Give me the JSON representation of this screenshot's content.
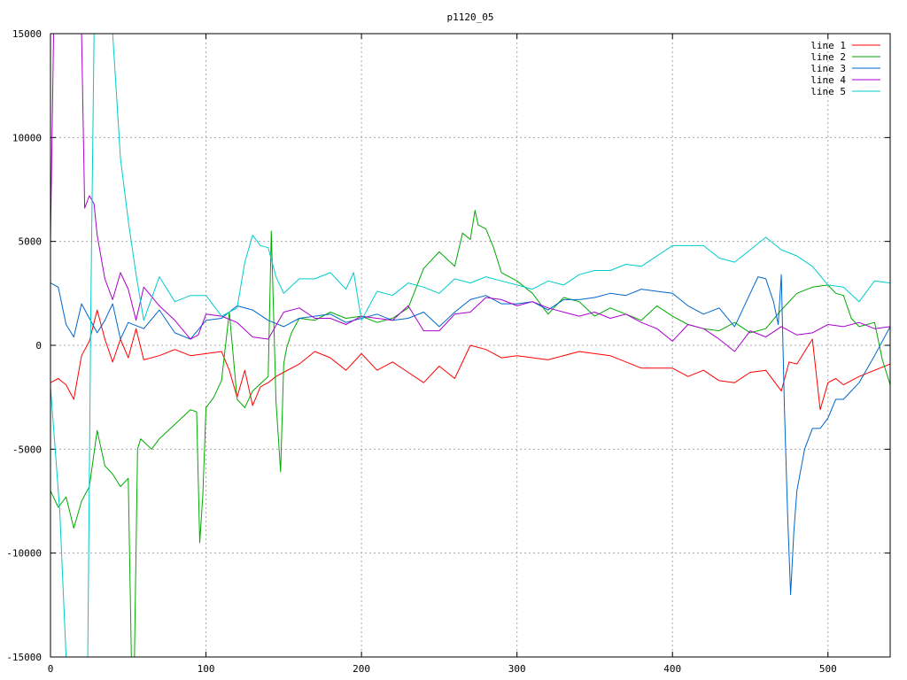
{
  "chart_data": {
    "type": "line",
    "title": "p1120_05",
    "xlabel": "",
    "ylabel": "",
    "xlim": [
      0,
      540
    ],
    "ylim": [
      -15000,
      15000
    ],
    "x_ticks": [
      "0",
      "100",
      "200",
      "300",
      "400",
      "500"
    ],
    "y_ticks": [
      "-15000",
      "-10000",
      "-5000",
      "0",
      "5000",
      "10000",
      "15000"
    ],
    "grid": true,
    "legend_position": "top-right",
    "series": [
      {
        "name": "line 1",
        "color": "#ff0000",
        "x": [
          0,
          5,
          10,
          15,
          20,
          25,
          30,
          35,
          40,
          45,
          50,
          55,
          60,
          70,
          80,
          90,
          100,
          110,
          115,
          120,
          125,
          130,
          135,
          140,
          145,
          150,
          160,
          170,
          180,
          190,
          200,
          210,
          220,
          230,
          240,
          250,
          260,
          270,
          280,
          290,
          300,
          320,
          340,
          360,
          380,
          400,
          410,
          420,
          430,
          440,
          450,
          460,
          470,
          475,
          480,
          490,
          495,
          500,
          505,
          510,
          520,
          530,
          540
        ],
        "y": [
          -1800,
          -1600,
          -1900,
          -2600,
          -500,
          200,
          1700,
          300,
          -800,
          300,
          -600,
          800,
          -700,
          -500,
          -200,
          -500,
          -400,
          -300,
          -1200,
          -2500,
          -1200,
          -2900,
          -2000,
          -1800,
          -1500,
          -1300,
          -900,
          -300,
          -600,
          -1200,
          -400,
          -1200,
          -800,
          -1300,
          -1800,
          -1000,
          -1600,
          0,
          -200,
          -600,
          -500,
          -700,
          -300,
          -500,
          -1100,
          -1100,
          -1500,
          -1200,
          -1700,
          -1800,
          -1300,
          -1200,
          -2200,
          -800,
          -900,
          300,
          -3100,
          -1800,
          -1600,
          -1900,
          -1500,
          -1200,
          -900
        ]
      },
      {
        "name": "line 2",
        "color": "#00aa00",
        "x": [
          0,
          5,
          10,
          15,
          20,
          25,
          30,
          35,
          40,
          45,
          50,
          52,
          54,
          56,
          58,
          65,
          70,
          80,
          90,
          94,
          96,
          98,
          100,
          105,
          110,
          115,
          120,
          125,
          130,
          140,
          142,
          145,
          148,
          150,
          152,
          155,
          160,
          170,
          180,
          190,
          200,
          210,
          220,
          230,
          240,
          250,
          260,
          265,
          270,
          273,
          275,
          280,
          285,
          290,
          300,
          310,
          320,
          330,
          340,
          350,
          360,
          370,
          380,
          390,
          400,
          410,
          420,
          430,
          440,
          450,
          460,
          470,
          480,
          490,
          500,
          505,
          510,
          515,
          520,
          525,
          530,
          535,
          540
        ],
        "y": [
          -7000,
          -7800,
          -7300,
          -8800,
          -7500,
          -6800,
          -4100,
          -5800,
          -6200,
          -6800,
          -6400,
          -15000,
          -15000,
          -5000,
          -4500,
          -5000,
          -4500,
          -3800,
          -3100,
          -3200,
          -9500,
          -7200,
          -3000,
          -2500,
          -1700,
          1600,
          -2600,
          -3000,
          -2200,
          -1500,
          5500,
          -2700,
          -6100,
          -900,
          -100,
          600,
          1300,
          1200,
          1600,
          1300,
          1400,
          1100,
          1300,
          1800,
          3700,
          4500,
          3800,
          5400,
          5100,
          6500,
          5800,
          5600,
          4700,
          3500,
          3100,
          2500,
          1500,
          2300,
          2100,
          1400,
          1800,
          1500,
          1200,
          1900,
          1400,
          1000,
          800,
          700,
          1100,
          600,
          800,
          1700,
          2500,
          2800,
          2900,
          2500,
          2400,
          1300,
          900,
          1000,
          1100,
          -700,
          -1900
        ]
      },
      {
        "name": "line 3",
        "color": "#0066cc",
        "x": [
          0,
          5,
          10,
          15,
          20,
          25,
          30,
          35,
          40,
          45,
          50,
          60,
          70,
          80,
          90,
          100,
          110,
          120,
          130,
          140,
          150,
          160,
          170,
          180,
          190,
          200,
          210,
          220,
          230,
          240,
          250,
          260,
          270,
          280,
          290,
          300,
          310,
          320,
          330,
          340,
          350,
          360,
          370,
          380,
          390,
          400,
          410,
          420,
          430,
          440,
          450,
          455,
          460,
          465,
          468,
          470,
          472,
          474,
          476,
          478,
          480,
          485,
          490,
          495,
          500,
          505,
          510,
          520,
          530,
          540
        ],
        "y": [
          3000,
          2800,
          1000,
          400,
          2000,
          1300,
          600,
          1200,
          2000,
          300,
          1100,
          800,
          1700,
          600,
          300,
          1200,
          1300,
          1900,
          1700,
          1200,
          900,
          1300,
          1400,
          1500,
          1100,
          1300,
          1500,
          1200,
          1300,
          1600,
          900,
          1600,
          2200,
          2400,
          2000,
          2000,
          2100,
          1700,
          2200,
          2200,
          2300,
          2500,
          2400,
          2700,
          2600,
          2500,
          1900,
          1500,
          1800,
          900,
          2500,
          3300,
          3200,
          2100,
          1000,
          3400,
          -3000,
          -8000,
          -12000,
          -9000,
          -7000,
          -5000,
          -4000,
          -4000,
          -3500,
          -2600,
          -2600,
          -1800,
          -500,
          900
        ]
      },
      {
        "name": "line 4",
        "color": "#aa00cc",
        "x": [
          0,
          2,
          4,
          6,
          8,
          10,
          15,
          18,
          20,
          22,
          25,
          28,
          30,
          35,
          40,
          45,
          50,
          55,
          60,
          70,
          80,
          90,
          95,
          100,
          110,
          120,
          130,
          140,
          150,
          160,
          170,
          180,
          190,
          200,
          210,
          220,
          230,
          240,
          250,
          260,
          270,
          280,
          290,
          300,
          310,
          320,
          330,
          340,
          350,
          360,
          370,
          380,
          390,
          400,
          410,
          420,
          430,
          440,
          450,
          460,
          470,
          480,
          490,
          500,
          510,
          520,
          530,
          540
        ],
        "y": [
          5000,
          15000,
          15000,
          15000,
          15000,
          15000,
          15000,
          15000,
          15000,
          6600,
          7200,
          6800,
          5300,
          3200,
          2200,
          3500,
          2700,
          1200,
          2800,
          1900,
          1200,
          300,
          500,
          1500,
          1400,
          1100,
          400,
          300,
          1600,
          1800,
          1300,
          1300,
          1000,
          1400,
          1300,
          1200,
          1900,
          700,
          700,
          1500,
          1600,
          2300,
          2200,
          1900,
          2100,
          1800,
          1600,
          1400,
          1600,
          1300,
          1500,
          1100,
          800,
          200,
          1000,
          800,
          300,
          -300,
          700,
          400,
          900,
          500,
          600,
          1000,
          900,
          1100,
          800,
          900
        ]
      },
      {
        "name": "line 5",
        "color": "#00cccc",
        "x": [
          0,
          3,
          6,
          10,
          14,
          18,
          20,
          22,
          24,
          26,
          28,
          30,
          33,
          35,
          38,
          40,
          45,
          50,
          55,
          60,
          70,
          80,
          90,
          100,
          110,
          120,
          125,
          130,
          135,
          140,
          145,
          150,
          160,
          170,
          180,
          190,
          195,
          200,
          210,
          220,
          230,
          240,
          250,
          260,
          270,
          280,
          290,
          300,
          310,
          320,
          330,
          340,
          350,
          360,
          370,
          380,
          390,
          400,
          410,
          420,
          430,
          440,
          450,
          460,
          470,
          480,
          490,
          500,
          510,
          520,
          530,
          540
        ],
        "y": [
          -2000,
          -5000,
          -8000,
          -15000,
          -15000,
          -15000,
          -15000,
          -15000,
          -15000,
          2000,
          15000,
          15000,
          15000,
          15000,
          15000,
          15000,
          9000,
          6000,
          3400,
          1200,
          3300,
          2100,
          2400,
          2400,
          1400,
          1800,
          4000,
          5300,
          4800,
          4700,
          3300,
          2500,
          3200,
          3200,
          3500,
          2700,
          3500,
          1200,
          2600,
          2400,
          3000,
          2800,
          2500,
          3200,
          3000,
          3300,
          3100,
          2900,
          2700,
          3100,
          2900,
          3400,
          3600,
          3600,
          3900,
          3800,
          4300,
          4800,
          4800,
          4800,
          4200,
          4000,
          4600,
          5200,
          4600,
          4300,
          3800,
          2900,
          2800,
          2100,
          3100,
          3000
        ]
      }
    ]
  }
}
